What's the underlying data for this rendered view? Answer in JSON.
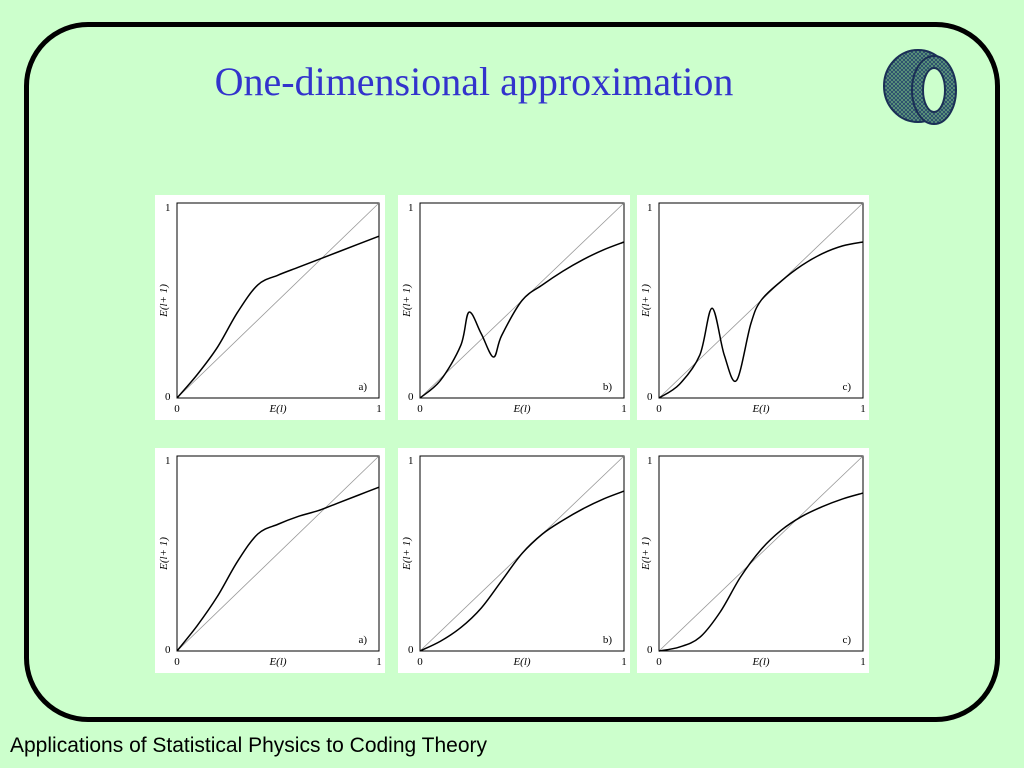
{
  "slide": {
    "title": "One-dimensional approximation",
    "footer": "Applications of Statistical Physics to Coding Theory"
  },
  "logo": {
    "icon": "torus-mesh-icon"
  },
  "colors": {
    "background": "#ccffcc",
    "title": "#3333cc",
    "curve": "#000000",
    "diagonal": "#999999"
  },
  "chart_data": [
    {
      "type": "line",
      "row": 1,
      "label": "a)",
      "xlabel": "E(l)",
      "ylabel": "E(l+ 1)",
      "xlim": [
        0,
        1
      ],
      "ylim": [
        0,
        1
      ],
      "x_ticks": [
        "0",
        "1"
      ],
      "y_ticks": [
        "0",
        "1"
      ],
      "series": [
        {
          "x": [
            0,
            0.1,
            0.2,
            0.3,
            0.4,
            0.5,
            0.6,
            0.7,
            0.8,
            0.9,
            1.0
          ],
          "y": [
            0,
            0.12,
            0.26,
            0.44,
            0.58,
            0.63,
            0.67,
            0.71,
            0.75,
            0.79,
            0.83
          ]
        }
      ]
    },
    {
      "type": "line",
      "row": 1,
      "label": "b)",
      "xlabel": "E(l)",
      "ylabel": "E(l+ 1)",
      "xlim": [
        0,
        1
      ],
      "ylim": [
        0,
        1
      ],
      "x_ticks": [
        "0",
        "1"
      ],
      "y_ticks": [
        "0",
        "1"
      ],
      "series": [
        {
          "x": [
            0,
            0.1,
            0.2,
            0.24,
            0.3,
            0.36,
            0.4,
            0.5,
            0.6,
            0.7,
            0.8,
            0.9,
            1.0
          ],
          "y": [
            0,
            0.09,
            0.27,
            0.44,
            0.33,
            0.21,
            0.32,
            0.5,
            0.58,
            0.65,
            0.71,
            0.76,
            0.8
          ]
        }
      ]
    },
    {
      "type": "line",
      "row": 1,
      "label": "c)",
      "xlabel": "E(l)",
      "ylabel": "E(l+ 1)",
      "xlim": [
        0,
        1
      ],
      "ylim": [
        0,
        1
      ],
      "x_ticks": [
        "0",
        "1"
      ],
      "y_ticks": [
        "0",
        "1"
      ],
      "series": [
        {
          "x": [
            0,
            0.1,
            0.2,
            0.26,
            0.32,
            0.38,
            0.45,
            0.5,
            0.6,
            0.7,
            0.8,
            0.9,
            1.0
          ],
          "y": [
            0,
            0.07,
            0.22,
            0.46,
            0.22,
            0.09,
            0.38,
            0.5,
            0.6,
            0.68,
            0.74,
            0.78,
            0.8
          ]
        }
      ]
    },
    {
      "type": "line",
      "row": 2,
      "label": "a)",
      "xlabel": "E(l)",
      "ylabel": "E(l+ 1)",
      "xlim": [
        0,
        1
      ],
      "ylim": [
        0,
        1
      ],
      "x_ticks": [
        "0",
        "1"
      ],
      "y_ticks": [
        "0",
        "1"
      ],
      "series": [
        {
          "x": [
            0,
            0.1,
            0.2,
            0.3,
            0.4,
            0.5,
            0.6,
            0.7,
            0.8,
            0.9,
            1.0
          ],
          "y": [
            0,
            0.13,
            0.28,
            0.46,
            0.6,
            0.65,
            0.69,
            0.72,
            0.76,
            0.8,
            0.84
          ]
        }
      ]
    },
    {
      "type": "line",
      "row": 2,
      "label": "b)",
      "xlabel": "E(l)",
      "ylabel": "E(l+ 1)",
      "xlim": [
        0,
        1
      ],
      "ylim": [
        0,
        1
      ],
      "x_ticks": [
        "0",
        "1"
      ],
      "y_ticks": [
        "0",
        "1"
      ],
      "series": [
        {
          "x": [
            0,
            0.1,
            0.2,
            0.3,
            0.4,
            0.5,
            0.6,
            0.7,
            0.8,
            0.9,
            1.0
          ],
          "y": [
            0,
            0.05,
            0.12,
            0.22,
            0.36,
            0.5,
            0.6,
            0.67,
            0.73,
            0.78,
            0.82
          ]
        }
      ]
    },
    {
      "type": "line",
      "row": 2,
      "label": "c)",
      "xlabel": "E(l)",
      "ylabel": "E(l+ 1)",
      "xlim": [
        0,
        1
      ],
      "ylim": [
        0,
        1
      ],
      "x_ticks": [
        "0",
        "1"
      ],
      "y_ticks": [
        "0",
        "1"
      ],
      "series": [
        {
          "x": [
            0,
            0.1,
            0.2,
            0.3,
            0.4,
            0.5,
            0.6,
            0.7,
            0.8,
            0.9,
            1.0
          ],
          "y": [
            0,
            0.02,
            0.07,
            0.2,
            0.38,
            0.52,
            0.62,
            0.69,
            0.74,
            0.78,
            0.81
          ]
        }
      ]
    }
  ]
}
